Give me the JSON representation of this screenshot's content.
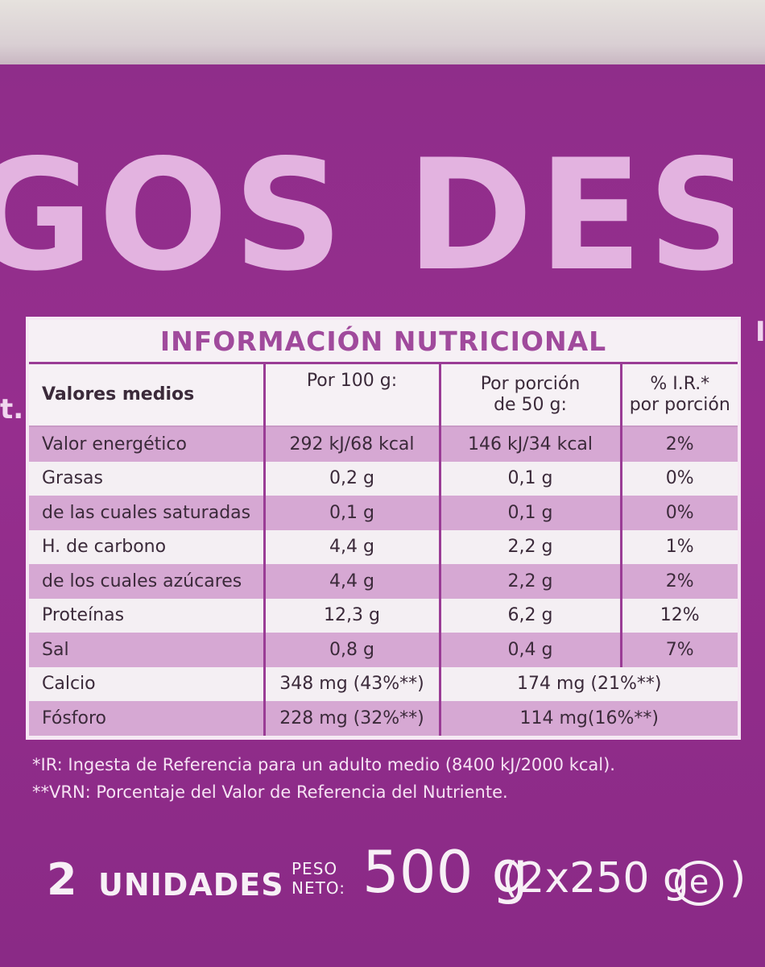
{
  "product_name": "GOS DESNA",
  "side_marks": [
    "I",
    "t."
  ],
  "nutrition": {
    "title": "INFORMACIÓN NUTRICIONAL",
    "headers": {
      "label": "Valores medios",
      "per100_line1": "Por 100 g:",
      "per_portion_line1": "Por porción",
      "per_portion_line2": "de 50 g:",
      "ir_line1": "% I.R.*",
      "ir_line2": "por porción"
    },
    "rows": [
      {
        "label": "Valor energético",
        "per100": "292 kJ/68 kcal",
        "portion": "146 kJ/34 kcal",
        "ir": "2%"
      },
      {
        "label": "Grasas",
        "per100": "0,2 g",
        "portion": "0,1 g",
        "ir": "0%"
      },
      {
        "label": "de las cuales saturadas",
        "per100": "0,1 g",
        "portion": "0,1 g",
        "ir": "0%"
      },
      {
        "label": "H. de carbono",
        "per100": "4,4 g",
        "portion": "2,2 g",
        "ir": "1%"
      },
      {
        "label": "de los cuales azúcares",
        "per100": "4,4 g",
        "portion": "2,2 g",
        "ir": "2%"
      },
      {
        "label": "Proteínas",
        "per100": "12,3 g",
        "portion": "6,2 g",
        "ir": "12%"
      },
      {
        "label": "Sal",
        "per100": "0,8 g",
        "portion": "0,4 g",
        "ir": "7%"
      }
    ],
    "minerals": [
      {
        "label": "Calcio",
        "per100": "348 mg (43%**)",
        "portion": "174 mg (21%**)"
      },
      {
        "label": "Fósforo",
        "per100": "228 mg (32%**)",
        "portion": "114 mg(16%**)"
      }
    ]
  },
  "footnotes": [
    "*IR: Ingesta de Referencia para un adulto medio (8400 kJ/2000 kcal).",
    "**VRN: Porcentaje del Valor de Referencia del Nutriente."
  ],
  "bottom": {
    "units_count": "2",
    "units_label": "UNIDADES",
    "peso_line1": "PESO",
    "peso_line2": "NETO:",
    "net_weight": "500 g",
    "weight_detail": "(2x250 g",
    "estimated_mark": "e",
    "closing": ")"
  }
}
